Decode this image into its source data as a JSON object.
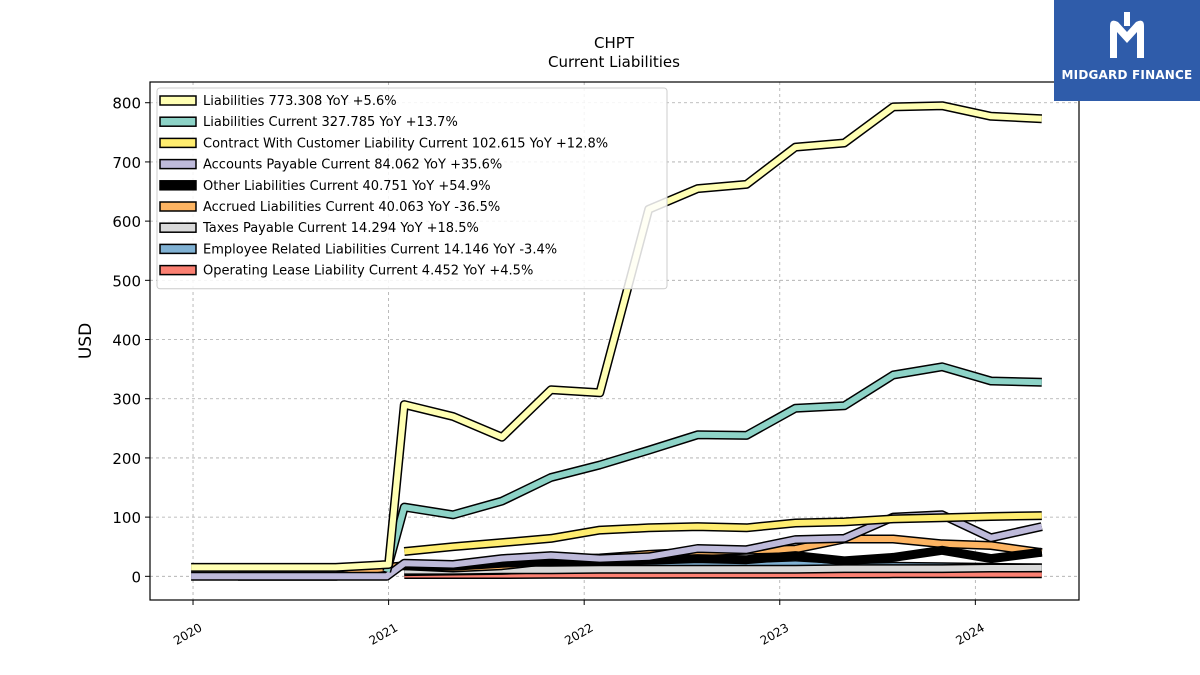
{
  "chart_data": {
    "type": "line",
    "title": "CHPT",
    "subtitle": "Current  Liabilities",
    "ylabel": "USD",
    "xlabel": "",
    "x_ticks": [
      "2020",
      "2021",
      "2022",
      "2023",
      "2024"
    ],
    "y_ticks": [
      "0",
      "100",
      "200",
      "300",
      "400",
      "500",
      "600",
      "700",
      "800"
    ],
    "xlim": [
      2019.78,
      2024.53
    ],
    "ylim": [
      -40,
      835
    ],
    "grid": true,
    "legend_position": "top-left",
    "series": [
      {
        "name": "Liabilities  773.308 YoY +5.6%",
        "color": "#ffffb3",
        "points": [
          [
            2019.99,
            15
          ],
          [
            2020.73,
            15
          ],
          [
            2021.0,
            20
          ],
          [
            2021.08,
            290
          ],
          [
            2021.33,
            270
          ],
          [
            2021.58,
            235
          ],
          [
            2021.83,
            315
          ],
          [
            2022.08,
            310
          ],
          [
            2022.33,
            620
          ],
          [
            2022.58,
            655
          ],
          [
            2022.83,
            662
          ],
          [
            2023.08,
            725
          ],
          [
            2023.33,
            732
          ],
          [
            2023.58,
            793
          ],
          [
            2023.83,
            795
          ],
          [
            2024.08,
            777
          ],
          [
            2024.34,
            773
          ]
        ]
      },
      {
        "name": "Liabilities Current  327.785 YoY +13.7%",
        "color": "#8dd3c7",
        "points": [
          [
            2020.99,
            8
          ],
          [
            2021.08,
            117
          ],
          [
            2021.33,
            104
          ],
          [
            2021.58,
            127
          ],
          [
            2021.83,
            167
          ],
          [
            2022.08,
            188
          ],
          [
            2022.33,
            213
          ],
          [
            2022.58,
            239
          ],
          [
            2022.83,
            238
          ],
          [
            2023.08,
            284
          ],
          [
            2023.33,
            288
          ],
          [
            2023.58,
            340
          ],
          [
            2023.83,
            354
          ],
          [
            2024.08,
            330
          ],
          [
            2024.34,
            327.785
          ]
        ]
      },
      {
        "name": "Contract With Customer Liability Current  102.615 YoY +12.8%",
        "color": "#ffed6f",
        "points": [
          [
            2021.08,
            42
          ],
          [
            2021.33,
            50
          ],
          [
            2021.58,
            57
          ],
          [
            2021.83,
            64
          ],
          [
            2022.08,
            78
          ],
          [
            2022.33,
            82
          ],
          [
            2022.58,
            84
          ],
          [
            2022.83,
            82
          ],
          [
            2023.08,
            90
          ],
          [
            2023.33,
            92
          ],
          [
            2023.58,
            97
          ],
          [
            2023.83,
            99
          ],
          [
            2024.08,
            101
          ],
          [
            2024.34,
            102.615
          ]
        ]
      },
      {
        "name": "Accounts Payable Current  84.062 YoY +35.6%",
        "color": "#bebada",
        "points": [
          [
            2019.99,
            0
          ],
          [
            2020.99,
            0
          ],
          [
            2021.08,
            22
          ],
          [
            2021.33,
            20
          ],
          [
            2021.58,
            30
          ],
          [
            2021.83,
            35
          ],
          [
            2022.08,
            30
          ],
          [
            2022.33,
            33
          ],
          [
            2022.58,
            47
          ],
          [
            2022.83,
            45
          ],
          [
            2023.08,
            62
          ],
          [
            2023.33,
            64
          ],
          [
            2023.58,
            100
          ],
          [
            2023.83,
            104
          ],
          [
            2024.08,
            65
          ],
          [
            2024.34,
            84.062
          ]
        ]
      },
      {
        "name": "Other Liabilities Current  40.751 YoY +54.9%",
        "color": "#000000",
        "points": [
          [
            2021.08,
            18
          ],
          [
            2021.33,
            17
          ],
          [
            2021.58,
            22
          ],
          [
            2021.83,
            26
          ],
          [
            2022.08,
            25
          ],
          [
            2022.33,
            27
          ],
          [
            2022.58,
            30
          ],
          [
            2022.83,
            28
          ],
          [
            2023.08,
            35
          ],
          [
            2023.33,
            26
          ],
          [
            2023.58,
            32
          ],
          [
            2023.83,
            44
          ],
          [
            2024.08,
            30
          ],
          [
            2024.34,
            40.751
          ]
        ]
      },
      {
        "name": "Accrued Liabilities Current  40.063 YoY -36.5%",
        "color": "#fdb462",
        "points": [
          [
            2020.23,
            0
          ],
          [
            2020.73,
            0
          ],
          [
            2020.99,
            15
          ],
          [
            2021.08,
            18
          ],
          [
            2021.33,
            14
          ],
          [
            2021.58,
            18
          ],
          [
            2021.83,
            27
          ],
          [
            2022.08,
            31
          ],
          [
            2022.33,
            37
          ],
          [
            2022.58,
            41
          ],
          [
            2022.83,
            44
          ],
          [
            2023.08,
            46
          ],
          [
            2023.33,
            63
          ],
          [
            2023.58,
            63
          ],
          [
            2023.83,
            55
          ],
          [
            2024.08,
            52
          ],
          [
            2024.34,
            40.063
          ]
        ]
      },
      {
        "name": "Taxes Payable Current  14.294 YoY +18.5%",
        "color": "#d9d9d9",
        "points": [
          [
            2021.08,
            10
          ],
          [
            2021.33,
            10
          ],
          [
            2021.58,
            11
          ],
          [
            2021.83,
            11
          ],
          [
            2022.08,
            12
          ],
          [
            2022.33,
            12
          ],
          [
            2022.58,
            12
          ],
          [
            2022.83,
            12
          ],
          [
            2023.08,
            12
          ],
          [
            2023.33,
            13
          ],
          [
            2023.58,
            13
          ],
          [
            2023.83,
            13
          ],
          [
            2024.08,
            14
          ],
          [
            2024.34,
            14.294
          ]
        ]
      },
      {
        "name": "Employee Related Liabilities Current  14.146 YoY -3.4%",
        "color": "#80b1d3",
        "points": [
          [
            2021.08,
            8
          ],
          [
            2021.33,
            9
          ],
          [
            2021.58,
            10
          ],
          [
            2021.83,
            13
          ],
          [
            2022.08,
            15
          ],
          [
            2022.33,
            16
          ],
          [
            2022.58,
            18
          ],
          [
            2022.83,
            17
          ],
          [
            2023.08,
            20
          ],
          [
            2023.33,
            15
          ],
          [
            2023.58,
            17
          ],
          [
            2023.83,
            16
          ],
          [
            2024.08,
            15
          ],
          [
            2024.34,
            14.146
          ]
        ]
      },
      {
        "name": "Operating Lease Liability Current  4.452 YoY +4.5%",
        "color": "#fb8072",
        "points": [
          [
            2021.08,
            3
          ],
          [
            2021.33,
            3
          ],
          [
            2021.58,
            3
          ],
          [
            2021.83,
            3.5
          ],
          [
            2022.08,
            3.5
          ],
          [
            2022.33,
            3.5
          ],
          [
            2022.58,
            3.8
          ],
          [
            2022.83,
            3.8
          ],
          [
            2023.08,
            4
          ],
          [
            2023.33,
            4
          ],
          [
            2023.58,
            4.2
          ],
          [
            2023.83,
            4.2
          ],
          [
            2024.08,
            4.3
          ],
          [
            2024.34,
            4.452
          ]
        ]
      }
    ]
  },
  "logo": {
    "text": "MIDGARD FINANCE"
  }
}
